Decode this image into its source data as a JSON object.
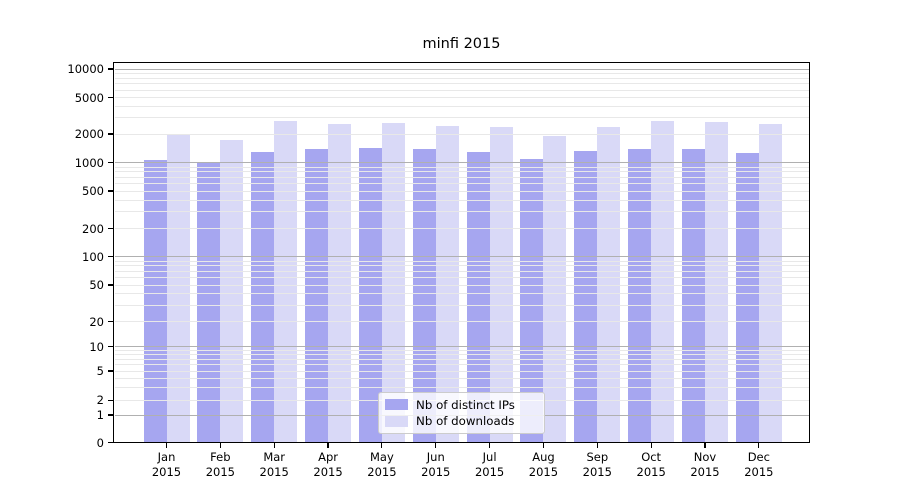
{
  "title": "minfi 2015",
  "chart_data": {
    "type": "bar",
    "title": "minfi 2015",
    "categories": [
      "Jan 2015",
      "Feb 2015",
      "Mar 2015",
      "Apr 2015",
      "May 2015",
      "Jun 2015",
      "Jul 2015",
      "Aug 2015",
      "Sep 2015",
      "Oct 2015",
      "Nov 2015",
      "Dec 2015"
    ],
    "series": [
      {
        "name": "Nb of distinct IPs",
        "color": "#a6a6f0",
        "values": [
          1070,
          990,
          1310,
          1390,
          1440,
          1400,
          1280,
          1100,
          1340,
          1390,
          1390,
          1260
        ]
      },
      {
        "name": "Nb of downloads",
        "color": "#d9d9f7",
        "values": [
          2000,
          1715,
          2780,
          2580,
          2630,
          2460,
          2380,
          1890,
          2360,
          2750,
          2730,
          2580
        ]
      }
    ],
    "xlabel": "",
    "ylabel": "",
    "yscale": "symlog",
    "yticks": [
      10000,
      5000,
      2000,
      1000,
      500,
      200,
      100,
      50,
      20,
      10,
      5,
      2,
      1,
      0
    ],
    "ylim": [
      0,
      13000
    ],
    "grid": true,
    "grid_over_bars": true,
    "legend_position": "lower center"
  },
  "colors": {
    "background": "#ffffff",
    "series_ips": "#a6a6f0",
    "series_downloads": "#d9d9f7",
    "grid_major": "#b0b0b0",
    "grid_minor": "#e8e8e8",
    "axis": "#000000"
  }
}
